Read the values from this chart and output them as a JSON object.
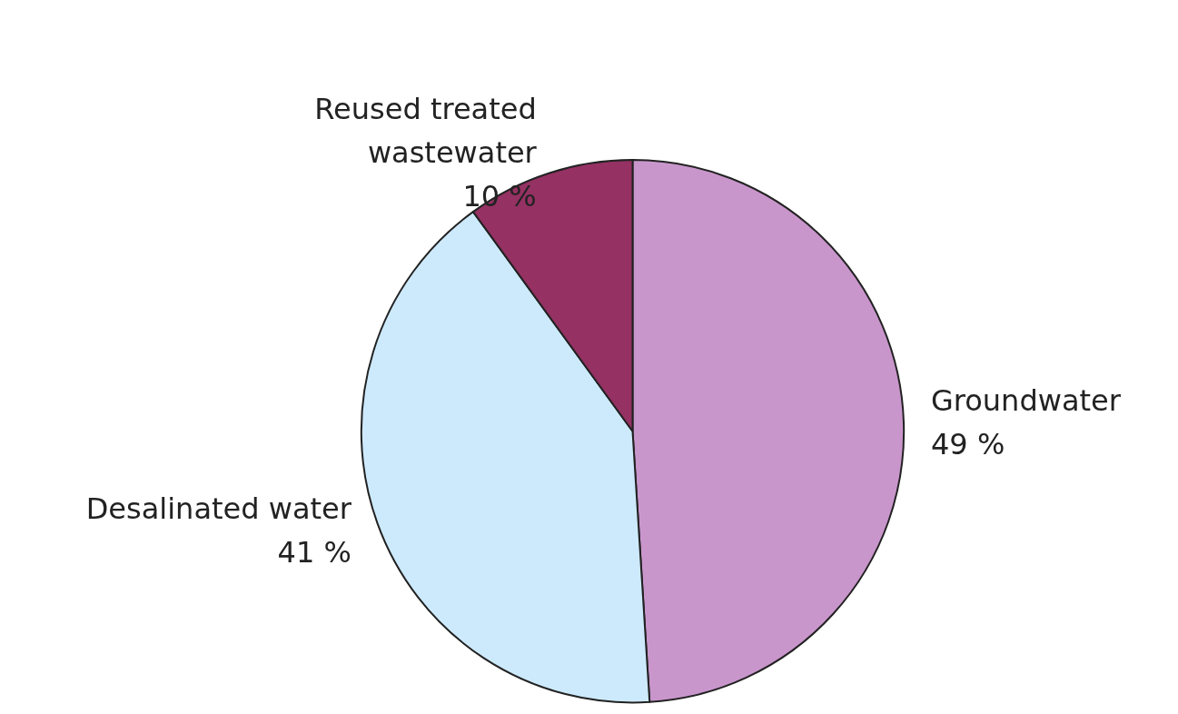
{
  "chart_data": {
    "type": "pie",
    "categories": [
      "Groundwater",
      "Desalinated water",
      "Reused treated wastewater"
    ],
    "values": [
      49,
      41,
      10
    ],
    "value_labels": [
      "49 %",
      "41 %",
      "10 %"
    ],
    "colors": [
      "#c996cc",
      "#cdeafd",
      "#953163"
    ]
  }
}
